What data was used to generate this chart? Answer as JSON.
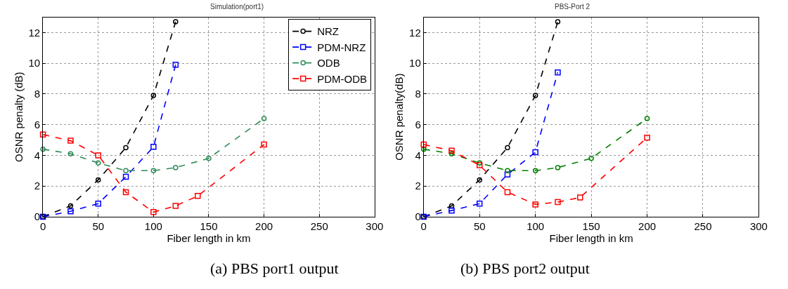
{
  "chart_data": [
    {
      "type": "line",
      "title": "Simulation(port1)",
      "xlabel": "Fiber length in km",
      "ylabel": "OSNR penalty (dB)",
      "annotations": [
        "(a) PBS port1 output"
      ],
      "xlim": [
        0,
        300
      ],
      "xticks": [
        0,
        50,
        100,
        150,
        200,
        250,
        300
      ],
      "ylim": [
        0,
        13
      ],
      "yticks": [
        0,
        2,
        4,
        6,
        8,
        10,
        12
      ],
      "grid": true,
      "legend": "top right",
      "line_style": "dashed",
      "series": [
        {
          "name": "NRZ",
          "color": "#000000",
          "marker": "circle",
          "x": [
            0,
            25,
            50,
            75,
            100,
            120
          ],
          "values": [
            0,
            0.7,
            2.4,
            4.5,
            7.9,
            12.7
          ]
        },
        {
          "name": "PDM-NRZ",
          "color": "#0000ff",
          "marker": "square",
          "x": [
            0,
            25,
            50,
            75,
            100,
            120
          ],
          "values": [
            0,
            0.35,
            0.85,
            2.6,
            4.55,
            9.9
          ]
        },
        {
          "name": "ODB",
          "color": "#2e8b57",
          "marker": "circle",
          "x": [
            0,
            25,
            50,
            75,
            100,
            120,
            150,
            200
          ],
          "values": [
            4.4,
            4.1,
            3.5,
            3.0,
            3.0,
            3.2,
            3.8,
            6.4
          ]
        },
        {
          "name": "PDM-ODB",
          "color": "#ff0000",
          "marker": "square",
          "x": [
            0,
            25,
            50,
            75,
            100,
            120,
            140,
            200
          ],
          "values": [
            5.35,
            4.95,
            4.0,
            1.6,
            0.3,
            0.7,
            1.35,
            4.7
          ]
        }
      ]
    },
    {
      "type": "line",
      "title": "PBS-Port 2",
      "xlabel": "Fiber length in km",
      "ylabel": "OSNR penalty(dB)",
      "annotations": [
        "(b) PBS port2 output"
      ],
      "xlim": [
        0,
        300
      ],
      "xticks": [
        0,
        50,
        100,
        150,
        200,
        250,
        300
      ],
      "ylim": [
        0,
        13
      ],
      "yticks": [
        0,
        2,
        4,
        6,
        8,
        10,
        12
      ],
      "grid": true,
      "line_style": "dashed",
      "series": [
        {
          "color": "#000000",
          "marker": "circle",
          "x": [
            0,
            25,
            50,
            75,
            100,
            120
          ],
          "values": [
            0,
            0.7,
            2.4,
            4.5,
            7.9,
            12.7
          ]
        },
        {
          "color": "#0000ff",
          "marker": "square",
          "x": [
            0,
            25,
            50,
            75,
            100,
            120
          ],
          "values": [
            0,
            0.4,
            0.85,
            2.75,
            4.2,
            9.4
          ]
        },
        {
          "color": "#008000",
          "marker": "circle",
          "x": [
            0,
            25,
            50,
            75,
            100,
            120,
            150,
            200
          ],
          "values": [
            4.4,
            4.1,
            3.5,
            3.0,
            3.0,
            3.2,
            3.8,
            6.4
          ]
        },
        {
          "color": "#ff0000",
          "marker": "square",
          "x": [
            0,
            25,
            50,
            75,
            100,
            120,
            140,
            200
          ],
          "values": [
            4.7,
            4.3,
            3.35,
            1.6,
            0.8,
            0.95,
            1.25,
            5.15
          ]
        }
      ]
    }
  ]
}
